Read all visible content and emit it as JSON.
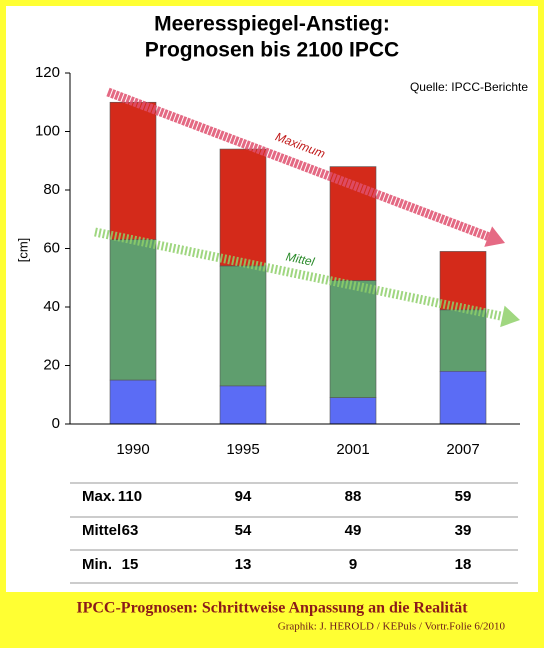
{
  "chart_data": {
    "type": "range-bar",
    "title": [
      "Meeresspiegel-Anstieg:",
      "Prognosen bis 2100 IPCC"
    ],
    "y_label": "[cm]",
    "source": "Quelle: IPCC-Berichte",
    "annotations": [
      "Maximum",
      "Mittel"
    ],
    "categories": [
      "1990",
      "1995",
      "2001",
      "2007"
    ],
    "series": [
      {
        "name": "Max.",
        "color": "#d42a1a",
        "values": [
          110,
          94,
          88,
          59
        ]
      },
      {
        "name": "Mittel",
        "color": "#5f9e6e",
        "values": [
          63,
          54,
          49,
          39
        ]
      },
      {
        "name": "Min.",
        "color": "#5b6cf5",
        "values": [
          15,
          13,
          9,
          18
        ]
      }
    ],
    "ylim": [
      0,
      120
    ],
    "yticks": [
      0,
      20,
      40,
      60,
      80,
      100,
      120
    ]
  },
  "footer": {
    "title": "IPCC-Prognosen: Schrittweise Anpassung an die Realität",
    "credit": "Graphik: J. HEROLD / KEPuls / Vortr.Folie 6/2010"
  }
}
